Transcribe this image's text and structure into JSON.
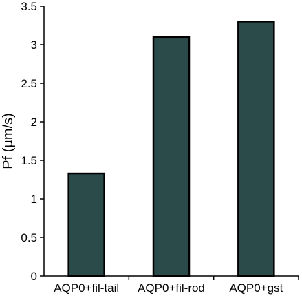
{
  "chart_data": {
    "type": "bar",
    "title": "",
    "xlabel": "",
    "ylabel": "Pf (µm/s)",
    "categories": [
      "AQP0+fil-tail",
      "AQP0+fil-rod",
      "AQP0+gst"
    ],
    "values": [
      1.33,
      3.1,
      3.3
    ],
    "ylim": [
      0,
      3.5
    ],
    "yticks": [
      0,
      0.5,
      1,
      1.5,
      2,
      2.5,
      3,
      3.5
    ],
    "ytick_labels": [
      "0",
      "0.5",
      "1",
      "1.5",
      "2",
      "2.5",
      "3",
      "3.5"
    ],
    "grid": false,
    "legend": "none",
    "colors": {
      "bar_fill": "#2b4a4a",
      "bar_stroke": "#000000",
      "axis": "#000000"
    }
  }
}
